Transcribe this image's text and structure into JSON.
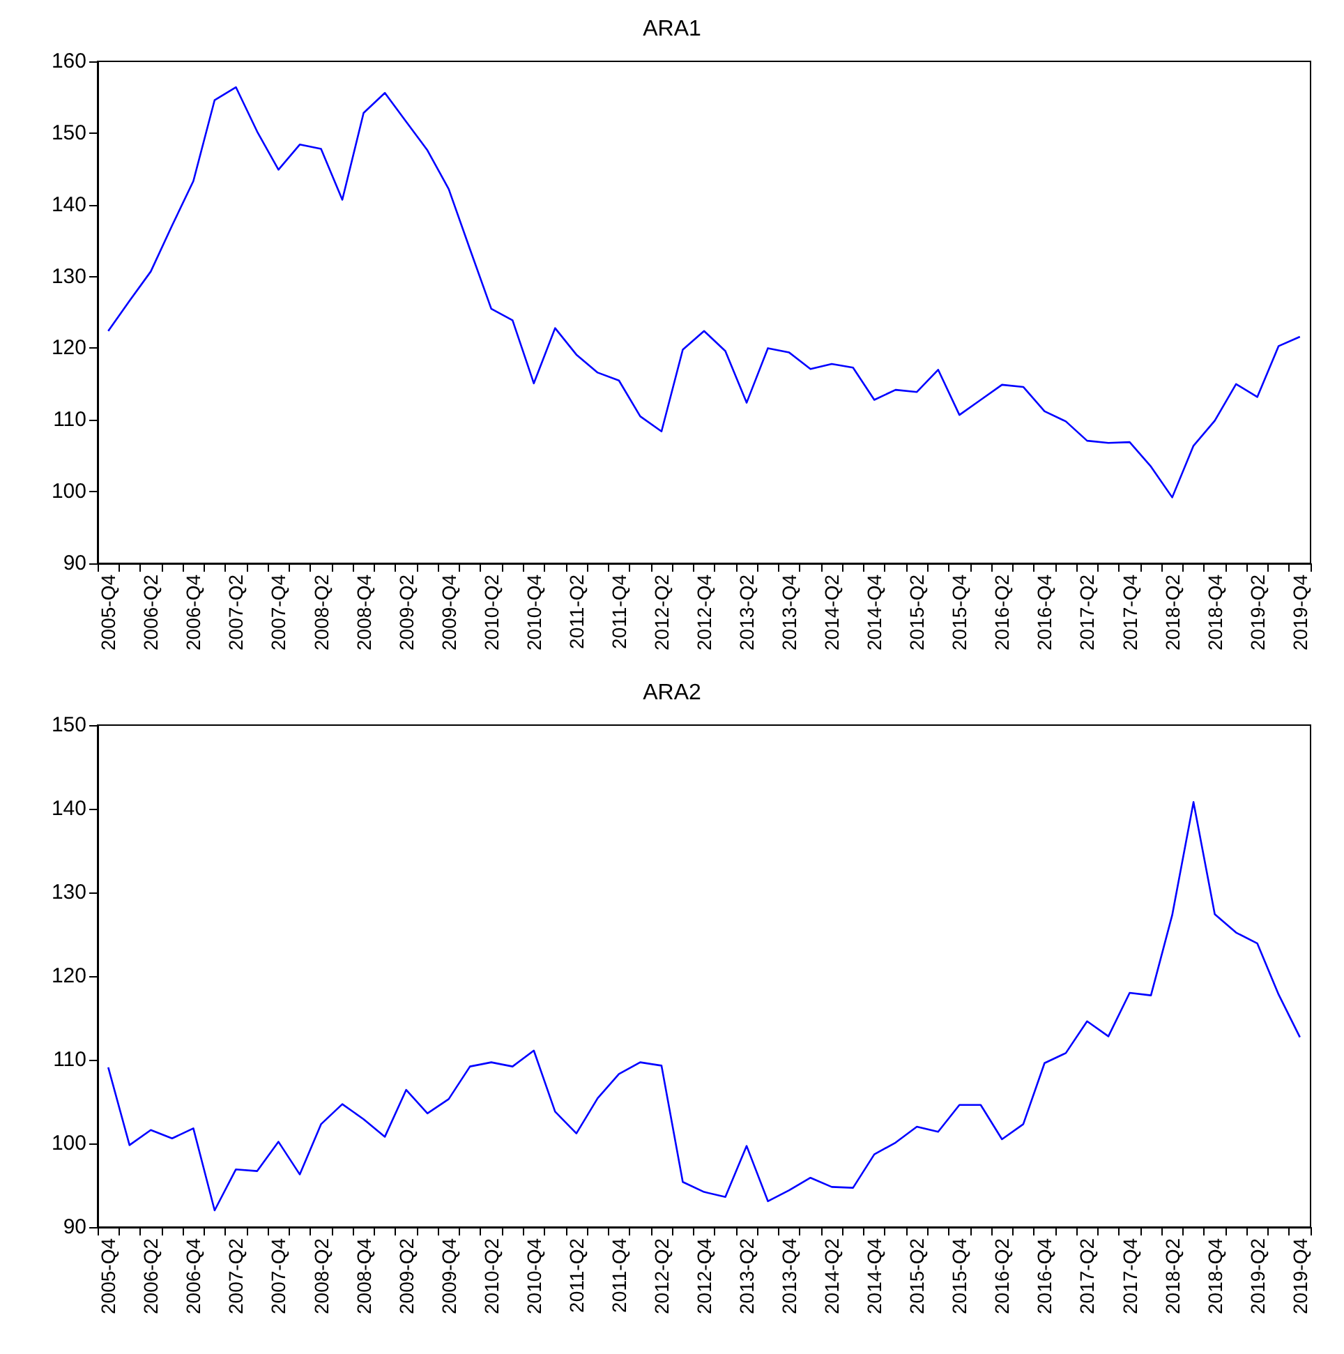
{
  "chart_data": [
    {
      "type": "line",
      "title": "ARA1",
      "categories": [
        "2005-Q4",
        null,
        "2006-Q2",
        null,
        "2006-Q4",
        null,
        "2007-Q2",
        null,
        "2007-Q4",
        null,
        "2008-Q2",
        null,
        "2008-Q4",
        null,
        "2009-Q2",
        null,
        "2009-Q4",
        null,
        "2010-Q2",
        null,
        "2010-Q4",
        null,
        "2011-Q2",
        null,
        "2011-Q4",
        null,
        "2012-Q2",
        null,
        "2012-Q4",
        null,
        "2013-Q2",
        null,
        "2013-Q4",
        null,
        "2014-Q2",
        null,
        "2014-Q4",
        null,
        "2015-Q2",
        null,
        "2015-Q4",
        null,
        "2016-Q2",
        null,
        "2016-Q4",
        null,
        "2017-Q2",
        null,
        "2017-Q4",
        null,
        "2018-Q2",
        null,
        "2018-Q4",
        null,
        "2019-Q2",
        null,
        "2019-Q4"
      ],
      "series": [
        {
          "color": "#0000ff",
          "values": [
            122.4,
            126.6,
            130.7,
            137.1,
            143.3,
            154.6,
            156.4,
            150.2,
            144.9,
            148.4,
            147.8,
            140.7,
            152.8,
            155.6,
            151.6,
            147.6,
            142.2,
            133.8,
            125.5,
            123.9,
            115.1,
            122.8,
            119.1,
            116.6,
            115.5,
            110.5,
            108.4,
            119.8,
            122.4,
            119.6,
            112.4,
            120.0,
            119.4,
            117.1,
            117.8,
            117.3,
            112.8,
            114.2,
            113.9,
            117.0,
            110.7,
            112.8,
            114.9,
            114.6,
            111.2,
            109.8,
            107.1,
            106.8,
            106.9,
            103.5,
            99.2,
            106.4,
            109.9,
            115.0,
            113.2,
            120.3,
            121.6
          ]
        }
      ],
      "ylim": [
        90,
        160
      ],
      "yticks": [
        90,
        100,
        110,
        120,
        130,
        140,
        150,
        160
      ]
    },
    {
      "type": "line",
      "title": "ARA2",
      "categories": [
        "2005-Q4",
        null,
        "2006-Q2",
        null,
        "2006-Q4",
        null,
        "2007-Q2",
        null,
        "2007-Q4",
        null,
        "2008-Q2",
        null,
        "2008-Q4",
        null,
        "2009-Q2",
        null,
        "2009-Q4",
        null,
        "2010-Q2",
        null,
        "2010-Q4",
        null,
        "2011-Q2",
        null,
        "2011-Q4",
        null,
        "2012-Q2",
        null,
        "2012-Q4",
        null,
        "2013-Q2",
        null,
        "2013-Q4",
        null,
        "2014-Q2",
        null,
        "2014-Q4",
        null,
        "2015-Q2",
        null,
        "2015-Q4",
        null,
        "2016-Q2",
        null,
        "2016-Q4",
        null,
        "2017-Q2",
        null,
        "2017-Q4",
        null,
        "2018-Q2",
        null,
        "2018-Q4",
        null,
        "2019-Q2",
        null,
        "2019-Q4"
      ],
      "series": [
        {
          "color": "#0000ff",
          "values": [
            109.1,
            99.8,
            101.6,
            100.6,
            101.8,
            92.0,
            96.9,
            96.7,
            100.2,
            96.3,
            102.3,
            104.7,
            102.9,
            100.8,
            106.4,
            103.6,
            105.3,
            109.2,
            109.7,
            109.2,
            111.1,
            103.8,
            101.2,
            105.4,
            108.3,
            109.7,
            109.3,
            95.4,
            94.2,
            93.6,
            99.7,
            93.1,
            94.4,
            95.9,
            94.8,
            94.7,
            98.7,
            100.1,
            102.0,
            101.4,
            104.6,
            104.6,
            100.5,
            102.3,
            109.6,
            110.8,
            114.6,
            112.8,
            118.0,
            117.7,
            127.3,
            140.8,
            127.4,
            125.2,
            123.9,
            117.8,
            112.7
          ]
        }
      ],
      "ylim": [
        90,
        150
      ],
      "yticks": [
        90,
        100,
        110,
        120,
        130,
        140,
        150
      ]
    }
  ]
}
